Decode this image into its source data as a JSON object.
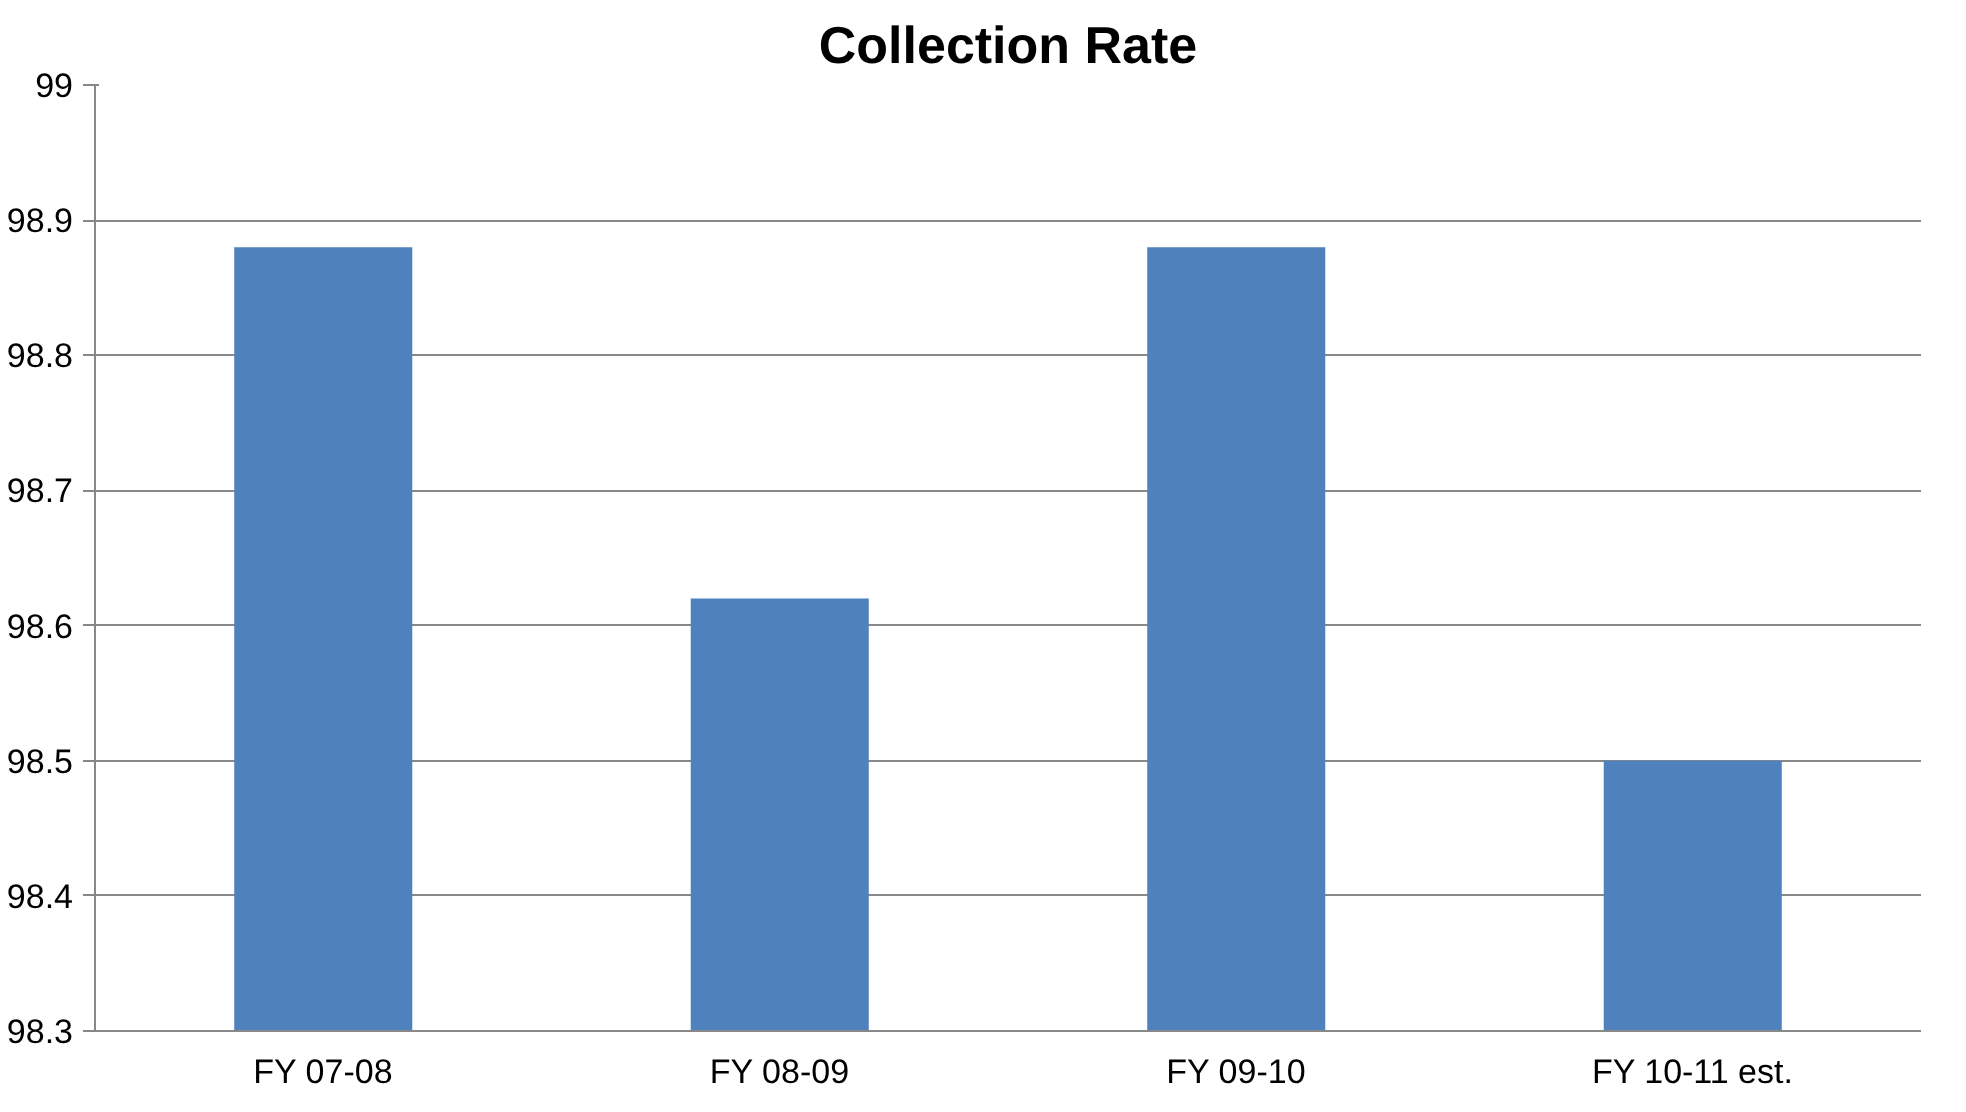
{
  "chart_data": {
    "type": "bar",
    "title": "Collection Rate",
    "categories": [
      "FY 07-08",
      "FY 08-09",
      "FY 09-10",
      "FY 10-11 est."
    ],
    "values": [
      98.88,
      98.62,
      98.88,
      98.5
    ],
    "color": "#4f81bd",
    "ylim": [
      98.3,
      99
    ],
    "yticks": [
      98.3,
      98.4,
      98.5,
      98.6,
      98.7,
      98.8,
      98.9,
      99
    ],
    "grid": "y"
  }
}
